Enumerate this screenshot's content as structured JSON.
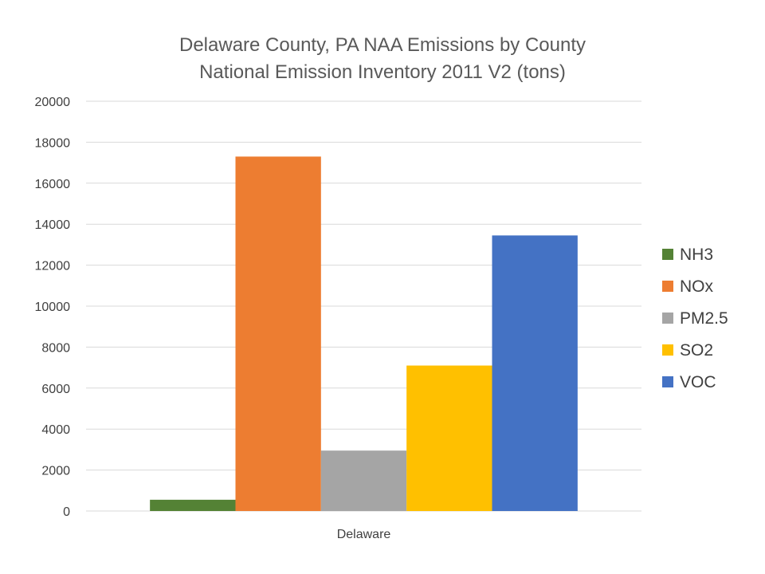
{
  "chart_data": {
    "type": "bar",
    "title": "Delaware County, PA NAA Emissions by County",
    "subtitle": "National Emission Inventory 2011 V2 (tons)",
    "xlabel": "",
    "ylabel": "",
    "categories": [
      "Delaware"
    ],
    "series": [
      {
        "name": "NH3",
        "values": [
          550
        ],
        "color": "#548235"
      },
      {
        "name": "NOx",
        "values": [
          17300
        ],
        "color": "#ed7d31"
      },
      {
        "name": "PM2.5",
        "values": [
          2950
        ],
        "color": "#a5a5a5"
      },
      {
        "name": "SO2",
        "values": [
          7100
        ],
        "color": "#ffc000"
      },
      {
        "name": "VOC",
        "values": [
          13450
        ],
        "color": "#4472c4"
      }
    ],
    "ylim": [
      0,
      20000
    ],
    "yticks": [
      "0",
      "2000",
      "4000",
      "6000",
      "8000",
      "10000",
      "12000",
      "14000",
      "16000",
      "18000",
      "20000"
    ],
    "grid": true,
    "legend_position": "right"
  }
}
